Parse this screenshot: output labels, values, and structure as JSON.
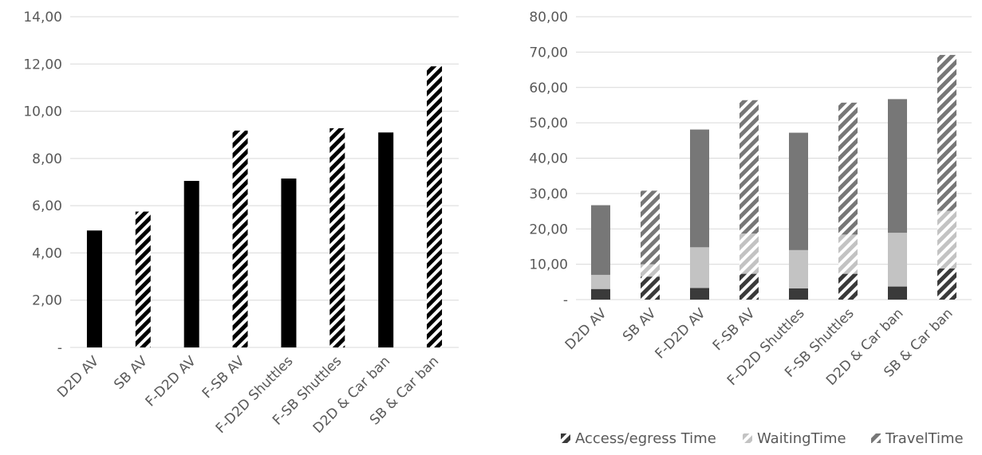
{
  "chart_data": [
    {
      "type": "bar",
      "categories": [
        "D2D AV",
        "SB AV",
        "F-D2D AV",
        "F-SB AV",
        "F-D2D Shuttles",
        "F-SB Shuttles",
        "D2D & Car ban",
        "SB & Car ban"
      ],
      "values": [
        4.95,
        5.75,
        7.05,
        9.18,
        7.15,
        9.28,
        9.1,
        11.9
      ],
      "patterns": [
        "solid",
        "hatched",
        "solid",
        "hatched",
        "solid",
        "hatched",
        "solid",
        "hatched"
      ],
      "ylim": [
        0,
        14
      ],
      "yticks": [
        0,
        2,
        4,
        6,
        8,
        10,
        12,
        14
      ],
      "ytick_labels": [
        "-",
        "2,00",
        "4,00",
        "6,00",
        "8,00",
        "10,00",
        "12,00",
        "14,00"
      ],
      "grid": true,
      "colors": {
        "bar": "#000000",
        "grid": "#d9d9d9",
        "text": "#595959"
      }
    },
    {
      "type": "bar",
      "stacked": true,
      "categories": [
        "D2D AV",
        "SB AV",
        "F-D2D AV",
        "F-SB AV",
        "F-D2D Shuttles",
        "F-SB Shuttles",
        "D2D & Car ban",
        "SB & Car ban"
      ],
      "patterns": [
        "solid",
        "hatched",
        "solid",
        "hatched",
        "solid",
        "hatched",
        "solid",
        "hatched"
      ],
      "series": [
        {
          "name": "Access/egress Time",
          "values": [
            3.0,
            6.5,
            3.3,
            7.3,
            3.2,
            7.3,
            3.7,
            8.8
          ],
          "color": "#3a3a3a"
        },
        {
          "name": "WaitingTime",
          "values": [
            4.0,
            3.5,
            11.5,
            11.4,
            10.8,
            11.1,
            15.2,
            16.3
          ],
          "color": "#c3c3c3"
        },
        {
          "name": "TravelTime",
          "values": [
            19.7,
            20.8,
            33.3,
            37.7,
            33.2,
            37.3,
            37.8,
            44.1
          ],
          "color": "#777777"
        }
      ],
      "ylim": [
        0,
        80
      ],
      "yticks": [
        0,
        10,
        20,
        30,
        40,
        50,
        60,
        70,
        80
      ],
      "ytick_labels": [
        "-",
        "10,00",
        "20,00",
        "30,00",
        "40,00",
        "50,00",
        "60,00",
        "70,00",
        "80,00"
      ],
      "grid": true,
      "legend_position": "bottom",
      "colors": {
        "grid": "#d9d9d9",
        "text": "#595959"
      }
    }
  ]
}
